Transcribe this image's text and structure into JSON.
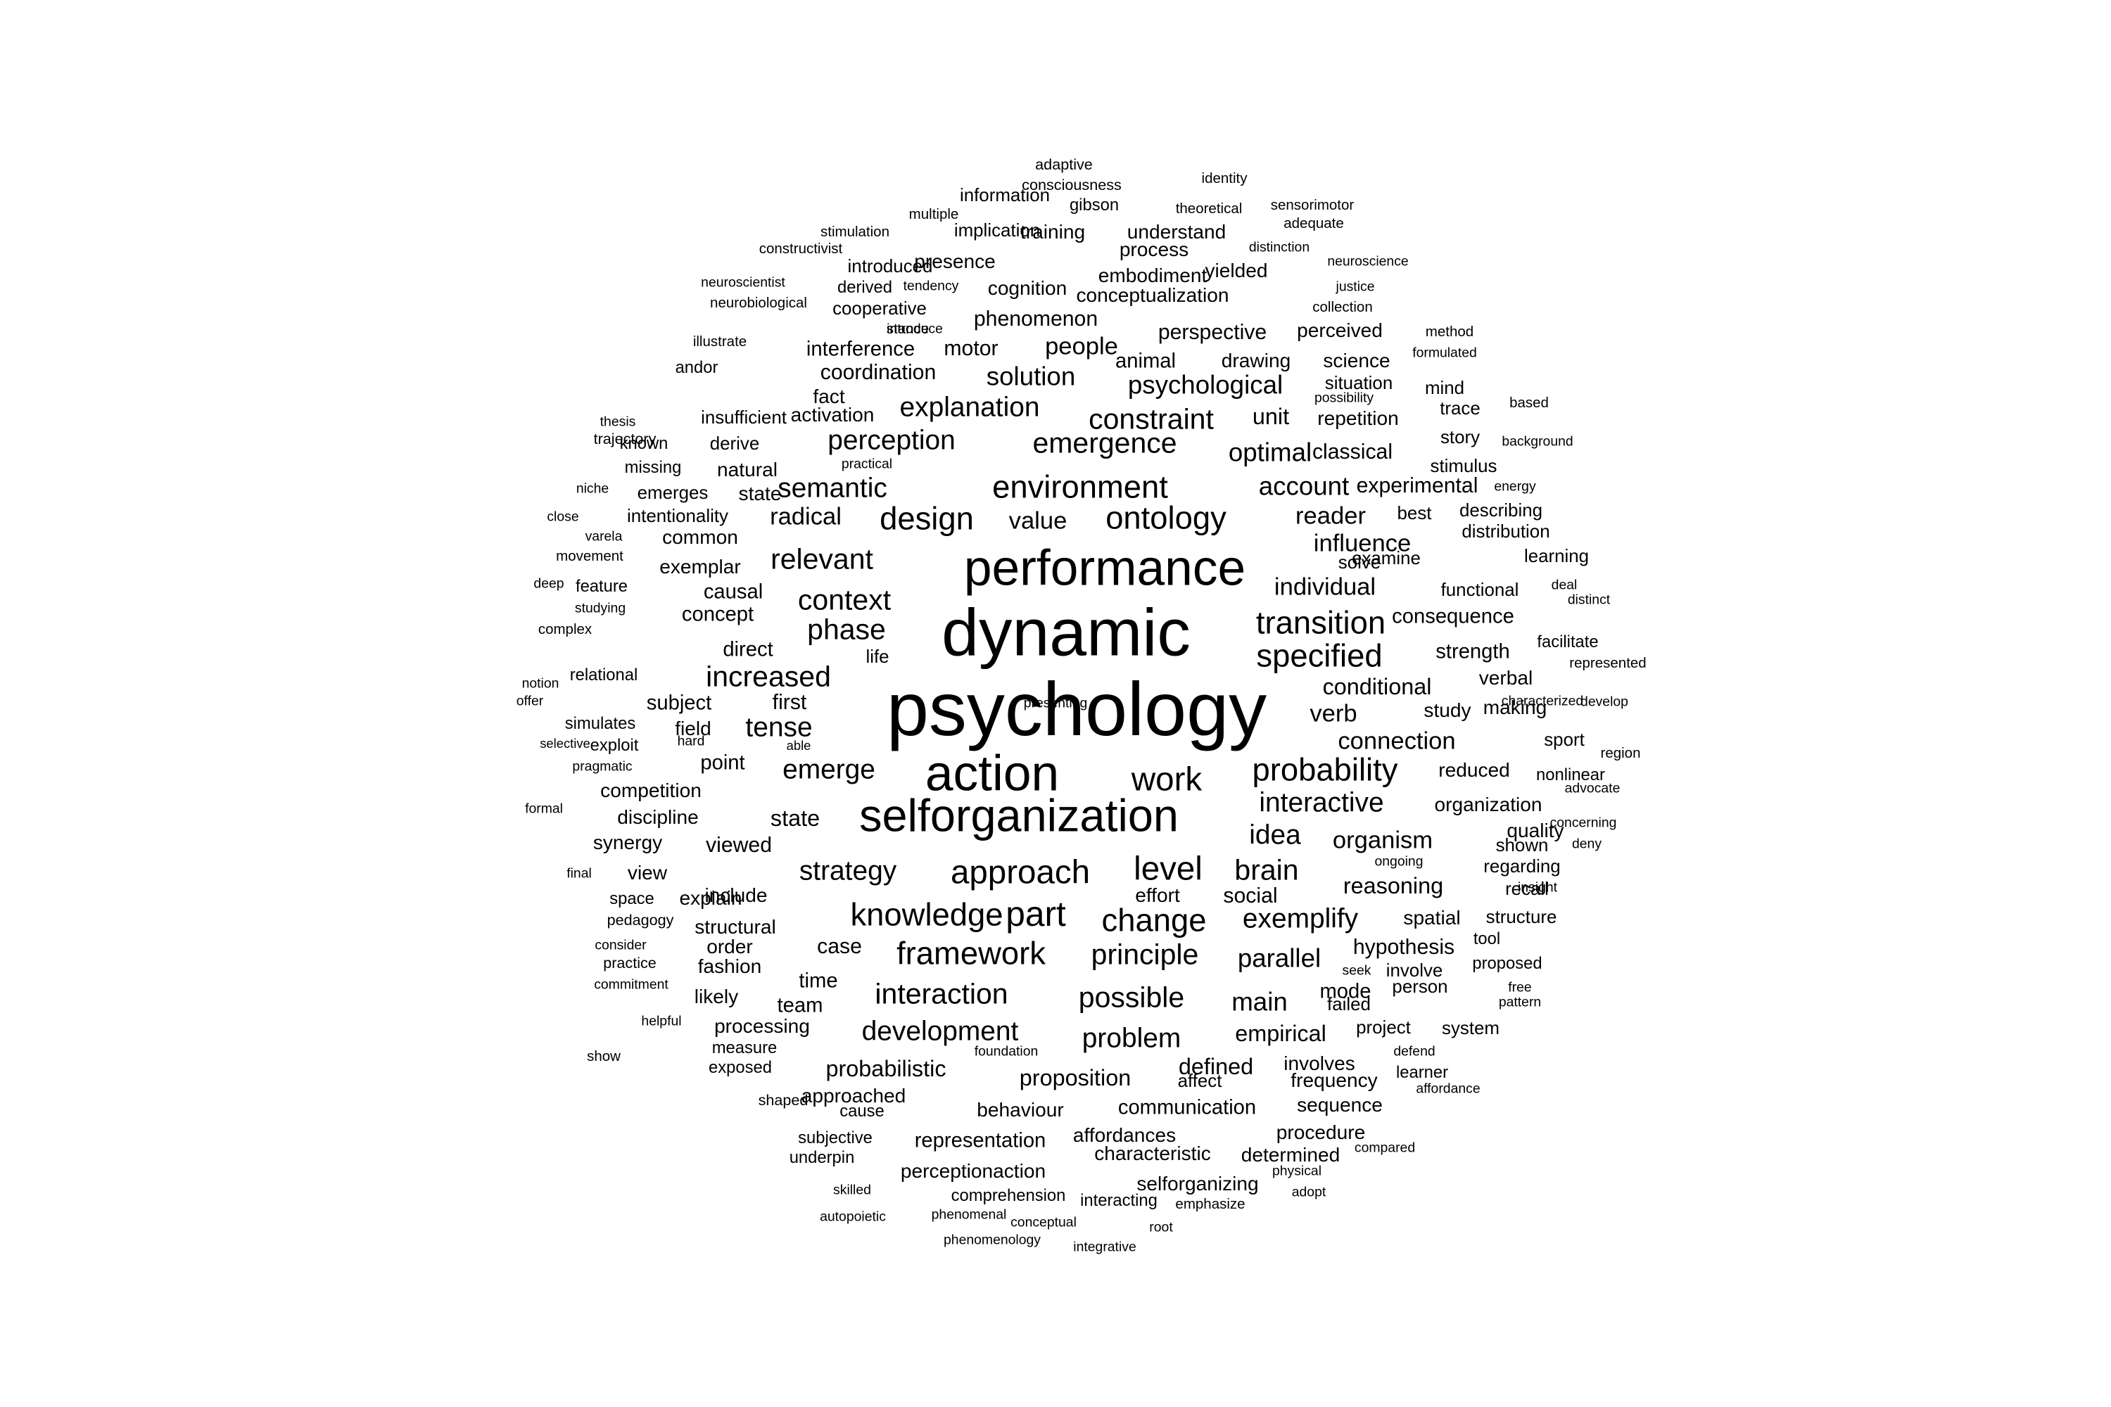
{
  "background_color": "#ffffff",
  "text_color": "#000000",
  "words": [
    {
      "text": "psychology",
      "size": 1.0
    },
    {
      "text": "dynamic",
      "size": 0.88
    },
    {
      "text": "performance",
      "size": 0.66
    },
    {
      "text": "selforganization",
      "size": 0.6
    },
    {
      "text": "action",
      "size": 0.66
    },
    {
      "text": "work",
      "size": 0.44
    },
    {
      "text": "approach",
      "size": 0.44
    },
    {
      "text": "level",
      "size": 0.44
    },
    {
      "text": "environment",
      "size": 0.42
    },
    {
      "text": "ontology",
      "size": 0.42
    },
    {
      "text": "design",
      "size": 0.42
    },
    {
      "text": "transition",
      "size": 0.42
    },
    {
      "text": "specified",
      "size": 0.42
    },
    {
      "text": "probability",
      "size": 0.42
    },
    {
      "text": "knowledge",
      "size": 0.42
    },
    {
      "text": "part",
      "size": 0.46
    },
    {
      "text": "change",
      "size": 0.42
    },
    {
      "text": "framework",
      "size": 0.42
    },
    {
      "text": "emergence",
      "size": 0.38
    },
    {
      "text": "constraint",
      "size": 0.38
    },
    {
      "text": "context",
      "size": 0.38
    },
    {
      "text": "phase",
      "size": 0.38
    },
    {
      "text": "relevant",
      "size": 0.38
    },
    {
      "text": "increased",
      "size": 0.38
    },
    {
      "text": "interaction",
      "size": 0.38
    },
    {
      "text": "brain",
      "size": 0.38
    },
    {
      "text": "possible",
      "size": 0.38
    },
    {
      "text": "principle",
      "size": 0.38
    },
    {
      "text": "strategy",
      "size": 0.36
    },
    {
      "text": "emerge",
      "size": 0.36
    },
    {
      "text": "idea",
      "size": 0.36
    },
    {
      "text": "interactive",
      "size": 0.36
    },
    {
      "text": "explanation",
      "size": 0.36
    },
    {
      "text": "perception",
      "size": 0.36
    },
    {
      "text": "semantic",
      "size": 0.36
    },
    {
      "text": "tense",
      "size": 0.36
    },
    {
      "text": "development",
      "size": 0.36
    },
    {
      "text": "exemplify",
      "size": 0.36
    },
    {
      "text": "problem",
      "size": 0.36
    },
    {
      "text": "parallel",
      "size": 0.34
    },
    {
      "text": "main",
      "size": 0.34
    },
    {
      "text": "psychological",
      "size": 0.34
    },
    {
      "text": "account",
      "size": 0.34
    },
    {
      "text": "optimal",
      "size": 0.34
    },
    {
      "text": "solution",
      "size": 0.34
    },
    {
      "text": "reader",
      "size": 0.32
    },
    {
      "text": "influence",
      "size": 0.32
    },
    {
      "text": "individual",
      "size": 0.32
    },
    {
      "text": "organism",
      "size": 0.32
    },
    {
      "text": "radical",
      "size": 0.32
    },
    {
      "text": "people",
      "size": 0.32
    },
    {
      "text": "connection",
      "size": 0.32
    },
    {
      "text": "verb",
      "size": 0.32
    },
    {
      "text": "value",
      "size": 0.32
    },
    {
      "text": "conditional",
      "size": 0.3
    },
    {
      "text": "reasoning",
      "size": 0.3
    },
    {
      "text": "defined",
      "size": 0.3
    },
    {
      "text": "probabilistic",
      "size": 0.3
    },
    {
      "text": "proposition",
      "size": 0.3
    },
    {
      "text": "empirical",
      "size": 0.3
    },
    {
      "text": "state",
      "size": 0.3
    },
    {
      "text": "unit",
      "size": 0.3
    },
    {
      "text": "coordination",
      "size": 0.28
    },
    {
      "text": "social",
      "size": 0.28
    },
    {
      "text": "perspective",
      "size": 0.28
    },
    {
      "text": "experimental",
      "size": 0.28
    },
    {
      "text": "classical",
      "size": 0.28
    },
    {
      "text": "viewed",
      "size": 0.28
    },
    {
      "text": "first",
      "size": 0.28
    },
    {
      "text": "hypothesis",
      "size": 0.28
    },
    {
      "text": "phenomenon",
      "size": 0.28
    },
    {
      "text": "case",
      "size": 0.28
    },
    {
      "text": "motor",
      "size": 0.28
    },
    {
      "text": "animal",
      "size": 0.27
    },
    {
      "text": "time",
      "size": 0.27
    },
    {
      "text": "concept",
      "size": 0.27
    },
    {
      "text": "causal",
      "size": 0.27
    },
    {
      "text": "direct",
      "size": 0.27
    },
    {
      "text": "subject",
      "size": 0.27
    },
    {
      "text": "interference",
      "size": 0.27
    },
    {
      "text": "team",
      "size": 0.27
    },
    {
      "text": "mode",
      "size": 0.27
    },
    {
      "text": "strength",
      "size": 0.27
    },
    {
      "text": "consequence",
      "size": 0.27
    },
    {
      "text": "point",
      "size": 0.27
    },
    {
      "text": "representation",
      "size": 0.27
    },
    {
      "text": "communication",
      "size": 0.27
    },
    {
      "text": "processing",
      "size": 0.26
    },
    {
      "text": "behaviour",
      "size": 0.26
    },
    {
      "text": "involves",
      "size": 0.26
    },
    {
      "text": "organization",
      "size": 0.26
    },
    {
      "text": "spatial",
      "size": 0.26
    },
    {
      "text": "reduced",
      "size": 0.26
    },
    {
      "text": "study",
      "size": 0.26
    },
    {
      "text": "verbal",
      "size": 0.26
    },
    {
      "text": "making",
      "size": 0.26
    },
    {
      "text": "quality",
      "size": 0.26
    },
    {
      "text": "effort",
      "size": 0.26
    },
    {
      "text": "approached",
      "size": 0.26
    },
    {
      "text": "perceptionaction",
      "size": 0.26
    },
    {
      "text": "selforganizing",
      "size": 0.26
    },
    {
      "text": "characteristic",
      "size": 0.26
    },
    {
      "text": "affordances",
      "size": 0.26
    },
    {
      "text": "determined",
      "size": 0.26
    },
    {
      "text": "procedure",
      "size": 0.26
    },
    {
      "text": "frequency",
      "size": 0.26
    },
    {
      "text": "sequence",
      "size": 0.26
    },
    {
      "text": "explain",
      "size": 0.26
    },
    {
      "text": "structural",
      "size": 0.26
    },
    {
      "text": "order",
      "size": 0.26
    },
    {
      "text": "include",
      "size": 0.26
    },
    {
      "text": "likely",
      "size": 0.26
    },
    {
      "text": "fashion",
      "size": 0.26
    },
    {
      "text": "competition",
      "size": 0.26
    },
    {
      "text": "discipline",
      "size": 0.26
    },
    {
      "text": "field",
      "size": 0.26
    },
    {
      "text": "synergy",
      "size": 0.26
    },
    {
      "text": "view",
      "size": 0.26
    },
    {
      "text": "exemplar",
      "size": 0.26
    },
    {
      "text": "natural",
      "size": 0.26
    },
    {
      "text": "state",
      "size": 0.26
    },
    {
      "text": "common",
      "size": 0.26
    },
    {
      "text": "emerges",
      "size": 0.24
    },
    {
      "text": "intentionality",
      "size": 0.24
    },
    {
      "text": "derive",
      "size": 0.24
    },
    {
      "text": "insufficient",
      "size": 0.24
    },
    {
      "text": "fact",
      "size": 0.26
    },
    {
      "text": "activation",
      "size": 0.26
    },
    {
      "text": "cognition",
      "size": 0.26
    },
    {
      "text": "embodiment",
      "size": 0.26
    },
    {
      "text": "conceptualization",
      "size": 0.26
    },
    {
      "text": "presence",
      "size": 0.26
    },
    {
      "text": "training",
      "size": 0.26
    },
    {
      "text": "understand",
      "size": 0.26
    },
    {
      "text": "process",
      "size": 0.26
    },
    {
      "text": "yielded",
      "size": 0.26
    },
    {
      "text": "drawing",
      "size": 0.26
    },
    {
      "text": "science",
      "size": 0.26
    },
    {
      "text": "perceived",
      "size": 0.26
    },
    {
      "text": "situation",
      "size": 0.24
    },
    {
      "text": "mind",
      "size": 0.24
    },
    {
      "text": "repetition",
      "size": 0.26
    },
    {
      "text": "trace",
      "size": 0.24
    },
    {
      "text": "story",
      "size": 0.24
    },
    {
      "text": "stimulus",
      "size": 0.24
    },
    {
      "text": "best",
      "size": 0.24
    },
    {
      "text": "describing",
      "size": 0.24
    },
    {
      "text": "distribution",
      "size": 0.24
    },
    {
      "text": "examine",
      "size": 0.24
    },
    {
      "text": "learning",
      "size": 0.24
    },
    {
      "text": "functional",
      "size": 0.24
    },
    {
      "text": "solve",
      "size": 0.24
    },
    {
      "text": "facilitate",
      "size": 0.22
    },
    {
      "text": "sport",
      "size": 0.24
    },
    {
      "text": "nonlinear",
      "size": 0.22
    },
    {
      "text": "shown",
      "size": 0.24
    },
    {
      "text": "regarding",
      "size": 0.24
    },
    {
      "text": "recall",
      "size": 0.24
    },
    {
      "text": "structure",
      "size": 0.24
    },
    {
      "text": "involve",
      "size": 0.24
    },
    {
      "text": "person",
      "size": 0.24
    },
    {
      "text": "failed",
      "size": 0.24
    },
    {
      "text": "project",
      "size": 0.24
    },
    {
      "text": "system",
      "size": 0.24
    },
    {
      "text": "affect",
      "size": 0.24
    },
    {
      "text": "learner",
      "size": 0.22
    },
    {
      "text": "tool",
      "size": 0.22
    },
    {
      "text": "proposed",
      "size": 0.22
    },
    {
      "text": "information",
      "size": 0.24
    },
    {
      "text": "implication",
      "size": 0.24
    },
    {
      "text": "gibson",
      "size": 0.22
    },
    {
      "text": "introduced",
      "size": 0.24
    },
    {
      "text": "derived",
      "size": 0.22
    },
    {
      "text": "cooperative",
      "size": 0.24
    },
    {
      "text": "measure",
      "size": 0.22
    },
    {
      "text": "exposed",
      "size": 0.22
    },
    {
      "text": "cause",
      "size": 0.22
    },
    {
      "text": "subjective",
      "size": 0.22
    },
    {
      "text": "underpin",
      "size": 0.22
    },
    {
      "text": "comprehension",
      "size": 0.22
    },
    {
      "text": "interacting",
      "size": 0.22
    },
    {
      "text": "shaped",
      "size": 0.2
    },
    {
      "text": "life",
      "size": 0.24
    },
    {
      "text": "relational",
      "size": 0.22
    },
    {
      "text": "simulates",
      "size": 0.22
    },
    {
      "text": "exploit",
      "size": 0.22
    },
    {
      "text": "feature",
      "size": 0.22
    },
    {
      "text": "andor",
      "size": 0.22
    },
    {
      "text": "known",
      "size": 0.22
    },
    {
      "text": "missing",
      "size": 0.22
    },
    {
      "text": "trajectory",
      "size": 0.2
    },
    {
      "text": "pedagogy",
      "size": 0.2
    },
    {
      "text": "space",
      "size": 0.22
    },
    {
      "text": "practice",
      "size": 0.2
    },
    {
      "text": "adaptive",
      "size": 0.2
    },
    {
      "text": "consciousness",
      "size": 0.2
    },
    {
      "text": "identity",
      "size": 0.19
    },
    {
      "text": "sensorimotor",
      "size": 0.19
    },
    {
      "text": "theoretical",
      "size": 0.19
    },
    {
      "text": "multiple",
      "size": 0.19
    },
    {
      "text": "stimulation",
      "size": 0.19
    },
    {
      "text": "adequate",
      "size": 0.19
    },
    {
      "text": "constructivist",
      "size": 0.19
    },
    {
      "text": "distinction",
      "size": 0.18
    },
    {
      "text": "neuroscience",
      "size": 0.18
    },
    {
      "text": "neuroscientist",
      "size": 0.18
    },
    {
      "text": "tendency",
      "size": 0.18
    },
    {
      "text": "justice",
      "size": 0.18
    },
    {
      "text": "neurobiological",
      "size": 0.19
    },
    {
      "text": "stance",
      "size": 0.19
    },
    {
      "text": "collection",
      "size": 0.19
    },
    {
      "text": "illustrate",
      "size": 0.19
    },
    {
      "text": "introduce",
      "size": 0.18
    },
    {
      "text": "method",
      "size": 0.19
    },
    {
      "text": "formulated",
      "size": 0.18
    },
    {
      "text": "possibility",
      "size": 0.18
    },
    {
      "text": "based",
      "size": 0.19
    },
    {
      "text": "thesis",
      "size": 0.18
    },
    {
      "text": "background",
      "size": 0.18
    },
    {
      "text": "practical",
      "size": 0.18
    },
    {
      "text": "niche",
      "size": 0.18
    },
    {
      "text": "energy",
      "size": 0.18
    },
    {
      "text": "close",
      "size": 0.18
    },
    {
      "text": "varela",
      "size": 0.18
    },
    {
      "text": "movement",
      "size": 0.19
    },
    {
      "text": "deep",
      "size": 0.18
    },
    {
      "text": "deal",
      "size": 0.18
    },
    {
      "text": "distinct",
      "size": 0.18
    },
    {
      "text": "studying",
      "size": 0.18
    },
    {
      "text": "complex",
      "size": 0.19
    },
    {
      "text": "represented",
      "size": 0.19
    },
    {
      "text": "notion",
      "size": 0.18
    },
    {
      "text": "develop",
      "size": 0.18
    },
    {
      "text": "offer",
      "size": 0.18
    },
    {
      "text": "characterized",
      "size": 0.18
    },
    {
      "text": "hard",
      "size": 0.18
    },
    {
      "text": "able",
      "size": 0.17
    },
    {
      "text": "selective",
      "size": 0.17
    },
    {
      "text": "region",
      "size": 0.19
    },
    {
      "text": "pragmatic",
      "size": 0.18
    },
    {
      "text": "advocate",
      "size": 0.18
    },
    {
      "text": "formal",
      "size": 0.18
    },
    {
      "text": "concerning",
      "size": 0.18
    },
    {
      "text": "deny",
      "size": 0.18
    },
    {
      "text": "ongoing",
      "size": 0.18
    },
    {
      "text": "final",
      "size": 0.18
    },
    {
      "text": "insight",
      "size": 0.18
    },
    {
      "text": "consider",
      "size": 0.18
    },
    {
      "text": "seek",
      "size": 0.18
    },
    {
      "text": "free",
      "size": 0.18
    },
    {
      "text": "commitment",
      "size": 0.18
    },
    {
      "text": "pattern",
      "size": 0.18
    },
    {
      "text": "helpful",
      "size": 0.18
    },
    {
      "text": "show",
      "size": 0.19
    },
    {
      "text": "foundation",
      "size": 0.18
    },
    {
      "text": "defend",
      "size": 0.18
    },
    {
      "text": "affordance",
      "size": 0.18
    },
    {
      "text": "compared",
      "size": 0.18
    },
    {
      "text": "physical",
      "size": 0.18
    },
    {
      "text": "skilled",
      "size": 0.18
    },
    {
      "text": "emphasize",
      "size": 0.19
    },
    {
      "text": "adopt",
      "size": 0.18
    },
    {
      "text": "autopoietic",
      "size": 0.18
    },
    {
      "text": "phenomenal",
      "size": 0.18
    },
    {
      "text": "conceptual",
      "size": 0.18
    },
    {
      "text": "root",
      "size": 0.18
    },
    {
      "text": "phenomenology",
      "size": 0.18
    },
    {
      "text": "integrative",
      "size": 0.18
    },
    {
      "text": "presenting",
      "size": 0.18
    }
  ]
}
